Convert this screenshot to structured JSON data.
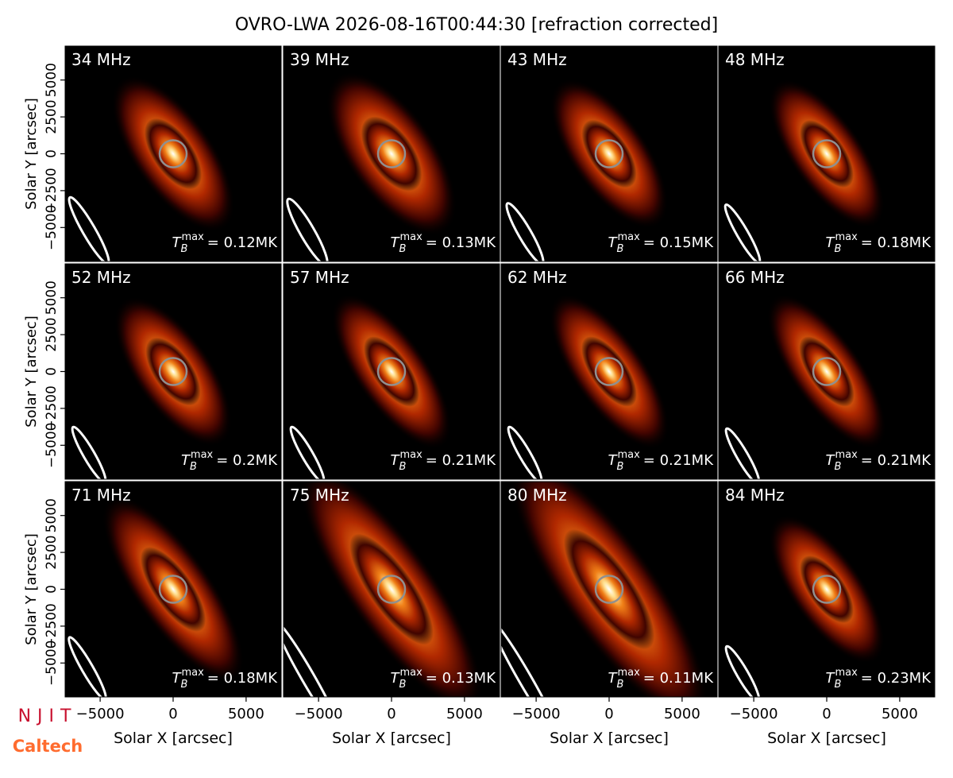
{
  "chart_data": {
    "type": "image-grid",
    "title": "OVRO-LWA 2026-08-16T00:44:30 [refraction corrected]",
    "x_label": "Solar X [arcsec]",
    "y_label": "Solar Y [arcsec]",
    "xlim": [
      -7400,
      7400
    ],
    "ylim": [
      -7300,
      7300
    ],
    "xticks": [
      {
        "value": -5000,
        "label": "−5000"
      },
      0,
      5000
    ],
    "yticks": [
      {
        "value": -5000,
        "label": "−5000"
      },
      {
        "value": -2500,
        "label": "−2500"
      },
      0,
      2500,
      5000
    ],
    "tb_symbol": "T",
    "tb_sub": "B",
    "tb_sup": "max",
    "panels": [
      {
        "name": "34 MHz",
        "tb_label": "= 0.12MK"
      },
      {
        "name": "39 MHz",
        "tb_label": "= 0.13MK"
      },
      {
        "name": "43 MHz",
        "tb_label": "= 0.15MK"
      },
      {
        "name": "48 MHz",
        "tb_label": "= 0.18MK"
      },
      {
        "name": "52 MHz",
        "tb_label": "= 0.2MK"
      },
      {
        "name": "57 MHz",
        "tb_label": "= 0.21MK"
      },
      {
        "name": "62 MHz",
        "tb_label": "= 0.21MK"
      },
      {
        "name": "66 MHz",
        "tb_label": "= 0.21MK"
      },
      {
        "name": "71 MHz",
        "tb_label": "= 0.18MK"
      },
      {
        "name": "75 MHz",
        "tb_label": "= 0.13MK"
      },
      {
        "name": "80 MHz",
        "tb_label": "= 0.11MK"
      },
      {
        "name": "84 MHz",
        "tb_label": "= 0.23MK"
      }
    ]
  },
  "logos": {
    "top": "NJIT",
    "bottom": "Caltech"
  }
}
